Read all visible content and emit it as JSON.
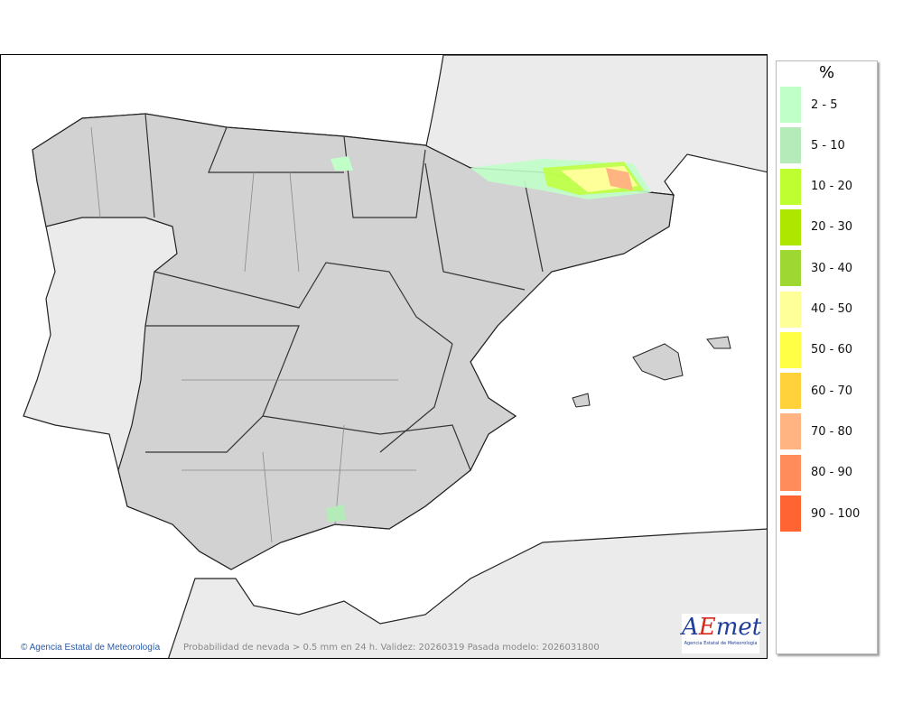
{
  "map": {
    "caption": "Probabilidad de nevada > 0.5 mm en 24 h. Validez: 20260319 Pasada modelo: 2026031800",
    "credit": "Agencia Estatal de Meteorología",
    "copyright_icon": "copyright-icon",
    "logo_text": "AEMet",
    "logo_subtext": "Agencia Estatal de Meteorología"
  },
  "legend": {
    "title": "%",
    "items": [
      {
        "label": "2 - 5",
        "color": "#c0ffc8"
      },
      {
        "label": "5 - 10",
        "color": "#b4ebb9"
      },
      {
        "label": "10 - 20",
        "color": "#bfff32"
      },
      {
        "label": "20 - 30",
        "color": "#aee600"
      },
      {
        "label": "30 - 40",
        "color": "#9fd732"
      },
      {
        "label": "40 - 50",
        "color": "#ffff9a"
      },
      {
        "label": "50 - 60",
        "color": "#ffff46"
      },
      {
        "label": "60 - 70",
        "color": "#ffd23c"
      },
      {
        "label": "70 - 80",
        "color": "#ffb482"
      },
      {
        "label": "80 - 90",
        "color": "#ff8c5a"
      },
      {
        "label": "90 - 100",
        "color": "#ff6432"
      }
    ]
  }
}
